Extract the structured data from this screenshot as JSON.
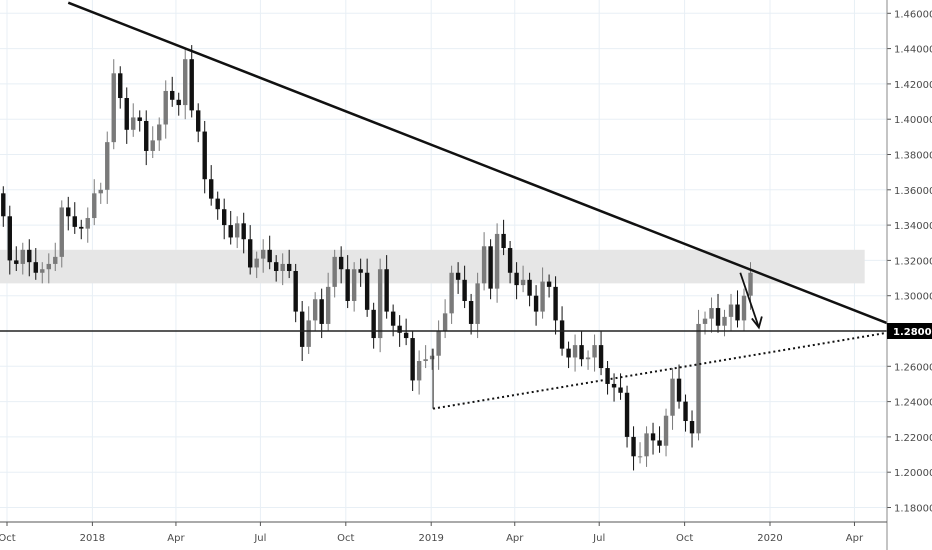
{
  "chart_data": {
    "type": "candlestick",
    "interval": "weekly",
    "start": "2017-09-25",
    "close": [
      1.345,
      1.32,
      1.318,
      1.326,
      1.319,
      1.313,
      1.315,
      1.318,
      1.322,
      1.35,
      1.345,
      1.339,
      1.338,
      1.344,
      1.358,
      1.36,
      1.387,
      1.426,
      1.412,
      1.394,
      1.401,
      1.399,
      1.382,
      1.388,
      1.397,
      1.416,
      1.411,
      1.408,
      1.434,
      1.405,
      1.393,
      1.366,
      1.355,
      1.349,
      1.34,
      1.333,
      1.341,
      1.332,
      1.316,
      1.321,
      1.326,
      1.319,
      1.314,
      1.318,
      1.314,
      1.291,
      1.271,
      1.286,
      1.298,
      1.284,
      1.305,
      1.322,
      1.315,
      1.297,
      1.315,
      1.313,
      1.292,
      1.276,
      1.315,
      1.291,
      1.283,
      1.279,
      1.276,
      1.252,
      1.263,
      1.264,
      1.266,
      1.28,
      1.29,
      1.313,
      1.309,
      1.297,
      1.284,
      1.307,
      1.328,
      1.304,
      1.335,
      1.327,
      1.313,
      1.306,
      1.309,
      1.3,
      1.291,
      1.308,
      1.305,
      1.286,
      1.27,
      1.265,
      1.272,
      1.264,
      1.265,
      1.272,
      1.259,
      1.25,
      1.248,
      1.245,
      1.22,
      1.209,
      1.209,
      1.222,
      1.218,
      1.215,
      1.232,
      1.253,
      1.24,
      1.229,
      1.222,
      1.284,
      1.287,
      1.293,
      1.283,
      1.288,
      1.295,
      1.286,
      1.3,
      1.313
    ],
    "first_open": 1.358,
    "notable_wick": {
      "date": "2019-01-03",
      "low": 1.236
    },
    "yaxis": {
      "range": [
        1.17,
        1.47
      ],
      "ticks": [
        "1.18000",
        "1.20000",
        "1.22000",
        "1.24000",
        "1.26000",
        "1.28000",
        "1.30000",
        "1.32000",
        "1.34000",
        "1.36000",
        "1.38000",
        "1.40000",
        "1.42000",
        "1.44000",
        "1.46000"
      ],
      "position": "right"
    },
    "xaxis": {
      "range": [
        "2017-09-24",
        "2020-05-06"
      ],
      "ticks": [
        {
          "date": "2017-10-01",
          "label": "Oct"
        },
        {
          "date": "2018-01-01",
          "label": "2018"
        },
        {
          "date": "2018-04-01",
          "label": "Apr"
        },
        {
          "date": "2018-07-01",
          "label": "Jul"
        },
        {
          "date": "2018-10-01",
          "label": "Oct"
        },
        {
          "date": "2019-01-01",
          "label": "2019"
        },
        {
          "date": "2019-04-01",
          "label": "Apr"
        },
        {
          "date": "2019-07-01",
          "label": "Jul"
        },
        {
          "date": "2019-10-01",
          "label": "Oct"
        },
        {
          "date": "2020-01-01",
          "label": "2020"
        },
        {
          "date": "2020-04-01",
          "label": "Apr"
        }
      ]
    },
    "grid": true,
    "price_label": "1.28000",
    "drawings": {
      "zone": {
        "from": 1.307,
        "to": 1.326,
        "end_date": "2020-04-12",
        "color": "#e6e6e6"
      },
      "trendline": {
        "start": [
          "2017-12-06",
          1.466
        ],
        "end": [
          "2020-05-06",
          1.2845
        ]
      },
      "horizontal_line": {
        "price": 1.28
      },
      "dotted_support": {
        "start": [
          "2019-01-03",
          1.236
        ],
        "end": [
          "2020-05-06",
          1.279
        ]
      },
      "arrow": {
        "start": [
          "2019-11-30",
          1.313
        ],
        "end": [
          "2019-12-20",
          1.282
        ]
      }
    },
    "colors": {
      "up": "#7a7a7a",
      "down": "#111111",
      "grid": "#e8eff5",
      "axis": "#555555"
    }
  }
}
